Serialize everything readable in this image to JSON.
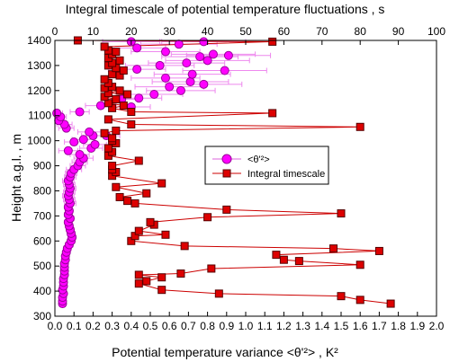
{
  "chart_data": {
    "type": "scatter",
    "top_axis_label": "Integral timescale of potential temperature fluctuations , s",
    "bottom_axis_label": "Potential temperature variance <θ'²> , K²",
    "y_axis_label": "Height a.g.l. , m",
    "bottom_axis": {
      "min": 0,
      "max": 2.0,
      "step": 0.1
    },
    "top_axis": {
      "min": 0,
      "max": 100,
      "step": 10
    },
    "y_axis": {
      "min": 300,
      "max": 1400,
      "step": 100
    },
    "legend_position": "center-right",
    "series": [
      {
        "name": "<θ'²>",
        "axis": "bottom",
        "marker": "circle",
        "color": "#ff00ff",
        "marker_edge": "#990099",
        "points": [
          {
            "x": 0.04,
            "y": 350,
            "err": 0
          },
          {
            "x": 0.04,
            "y": 360,
            "err": 0
          },
          {
            "x": 0.04,
            "y": 375,
            "err": 0
          },
          {
            "x": 0.045,
            "y": 390,
            "err": 0
          },
          {
            "x": 0.04,
            "y": 405,
            "err": 0
          },
          {
            "x": 0.045,
            "y": 420,
            "err": 0
          },
          {
            "x": 0.045,
            "y": 435,
            "err": 0
          },
          {
            "x": 0.045,
            "y": 450,
            "err": 0
          },
          {
            "x": 0.05,
            "y": 465,
            "err": 0
          },
          {
            "x": 0.05,
            "y": 480,
            "err": 0
          },
          {
            "x": 0.05,
            "y": 495,
            "err": 0
          },
          {
            "x": 0.05,
            "y": 510,
            "err": 0
          },
          {
            "x": 0.055,
            "y": 525,
            "err": 0
          },
          {
            "x": 0.055,
            "y": 540,
            "err": 0
          },
          {
            "x": 0.06,
            "y": 555,
            "err": 0
          },
          {
            "x": 0.065,
            "y": 570,
            "err": 0.02
          },
          {
            "x": 0.075,
            "y": 585,
            "err": 0.02
          },
          {
            "x": 0.085,
            "y": 600,
            "err": 0.02
          },
          {
            "x": 0.09,
            "y": 615,
            "err": 0.02
          },
          {
            "x": 0.085,
            "y": 630,
            "err": 0.02
          },
          {
            "x": 0.08,
            "y": 645,
            "err": 0.02
          },
          {
            "x": 0.075,
            "y": 660,
            "err": 0.02
          },
          {
            "x": 0.07,
            "y": 675,
            "err": 0.02
          },
          {
            "x": 0.08,
            "y": 690,
            "err": 0.02
          },
          {
            "x": 0.07,
            "y": 705,
            "err": 0.02
          },
          {
            "x": 0.075,
            "y": 720,
            "err": 0.02
          },
          {
            "x": 0.07,
            "y": 735,
            "err": 0.02
          },
          {
            "x": 0.08,
            "y": 750,
            "err": 0.03
          },
          {
            "x": 0.075,
            "y": 765,
            "err": 0.03
          },
          {
            "x": 0.07,
            "y": 780,
            "err": 0.03
          },
          {
            "x": 0.075,
            "y": 795,
            "err": 0.03
          },
          {
            "x": 0.08,
            "y": 810,
            "err": 0.03
          },
          {
            "x": 0.075,
            "y": 825,
            "err": 0.03
          },
          {
            "x": 0.07,
            "y": 840,
            "err": 0.03
          },
          {
            "x": 0.08,
            "y": 855,
            "err": 0.03
          },
          {
            "x": 0.085,
            "y": 870,
            "err": 0.03
          },
          {
            "x": 0.1,
            "y": 885,
            "err": 0.04
          },
          {
            "x": 0.12,
            "y": 900,
            "err": 0.04
          },
          {
            "x": 0.13,
            "y": 915,
            "err": 0.04
          },
          {
            "x": 0.15,
            "y": 930,
            "err": 0.05
          },
          {
            "x": 0.13,
            "y": 945,
            "err": 0.05
          },
          {
            "x": 0.07,
            "y": 960,
            "err": 0.05
          },
          {
            "x": 0.19,
            "y": 970,
            "err": 0.06
          },
          {
            "x": 0.21,
            "y": 985,
            "err": 0.06
          },
          {
            "x": 0.1,
            "y": 995,
            "err": 0.05
          },
          {
            "x": 0.15,
            "y": 1005,
            "err": 0.06
          },
          {
            "x": 0.2,
            "y": 1020,
            "err": 0.06
          },
          {
            "x": 0.27,
            "y": 1020,
            "err": 0.07
          },
          {
            "x": 0.18,
            "y": 1035,
            "err": 0.06
          },
          {
            "x": 0.06,
            "y": 1050,
            "err": 0.04
          },
          {
            "x": 0.05,
            "y": 1065,
            "err": 0.04
          },
          {
            "x": 0.02,
            "y": 1080,
            "err": 0.03
          },
          {
            "x": 0.03,
            "y": 1095,
            "err": 0.03
          },
          {
            "x": 0.01,
            "y": 1110,
            "err": 0.03
          },
          {
            "x": 0.13,
            "y": 1115,
            "err": 0.05
          },
          {
            "x": 0.24,
            "y": 1140,
            "err": 0.08
          },
          {
            "x": 0.4,
            "y": 1135,
            "err": 0.1
          },
          {
            "x": 0.35,
            "y": 1165,
            "err": 0.1
          },
          {
            "x": 0.44,
            "y": 1170,
            "err": 0.12
          },
          {
            "x": 0.52,
            "y": 1185,
            "err": 0.15
          },
          {
            "x": 0.66,
            "y": 1200,
            "err": 0.18
          },
          {
            "x": 0.6,
            "y": 1215,
            "err": 0.18
          },
          {
            "x": 0.78,
            "y": 1225,
            "err": 0.2
          },
          {
            "x": 0.71,
            "y": 1235,
            "err": 0.2
          },
          {
            "x": 0.58,
            "y": 1250,
            "err": 0.18
          },
          {
            "x": 0.72,
            "y": 1265,
            "err": 0.2
          },
          {
            "x": 0.89,
            "y": 1280,
            "err": 0.22
          },
          {
            "x": 0.43,
            "y": 1285,
            "err": 0.15
          },
          {
            "x": 0.55,
            "y": 1300,
            "err": 0.18
          },
          {
            "x": 0.69,
            "y": 1310,
            "err": 0.2
          },
          {
            "x": 0.8,
            "y": 1320,
            "err": 0.22
          },
          {
            "x": 0.76,
            "y": 1335,
            "err": 0.2
          },
          {
            "x": 0.91,
            "y": 1340,
            "err": 0.22
          },
          {
            "x": 0.83,
            "y": 1345,
            "err": 0.22
          },
          {
            "x": 0.58,
            "y": 1355,
            "err": 0.18
          },
          {
            "x": 0.43,
            "y": 1370,
            "err": 0.15
          },
          {
            "x": 0.65,
            "y": 1385,
            "err": 0.2
          },
          {
            "x": 0.4,
            "y": 1395,
            "err": 0.15
          },
          {
            "x": 0.78,
            "y": 1395,
            "err": 0.22
          }
        ]
      },
      {
        "name": "Integral timescale",
        "axis": "top",
        "marker": "square",
        "color": "#dd0000",
        "marker_edge": "#550000",
        "points": [
          {
            "x": 88,
            "y": 350
          },
          {
            "x": 80,
            "y": 365
          },
          {
            "x": 75,
            "y": 380
          },
          {
            "x": 43,
            "y": 390
          },
          {
            "x": 28,
            "y": 405
          },
          {
            "x": 22,
            "y": 430
          },
          {
            "x": 24,
            "y": 440
          },
          {
            "x": 28,
            "y": 455
          },
          {
            "x": 22,
            "y": 465
          },
          {
            "x": 33,
            "y": 470
          },
          {
            "x": 41,
            "y": 490
          },
          {
            "x": 80,
            "y": 505
          },
          {
            "x": 64,
            "y": 520
          },
          {
            "x": 60,
            "y": 525
          },
          {
            "x": 58,
            "y": 545
          },
          {
            "x": 85,
            "y": 560
          },
          {
            "x": 73,
            "y": 570
          },
          {
            "x": 34,
            "y": 580
          },
          {
            "x": 20,
            "y": 600
          },
          {
            "x": 21,
            "y": 620
          },
          {
            "x": 29,
            "y": 625
          },
          {
            "x": 22,
            "y": 640
          },
          {
            "x": 26,
            "y": 665
          },
          {
            "x": 25,
            "y": 675
          },
          {
            "x": 40,
            "y": 695
          },
          {
            "x": 75,
            "y": 710
          },
          {
            "x": 45,
            "y": 725
          },
          {
            "x": 21,
            "y": 750
          },
          {
            "x": 19,
            "y": 760
          },
          {
            "x": 17,
            "y": 775
          },
          {
            "x": 24,
            "y": 790
          },
          {
            "x": 16,
            "y": 815
          },
          {
            "x": 28,
            "y": 830
          },
          {
            "x": 15,
            "y": 860
          },
          {
            "x": 16,
            "y": 875
          },
          {
            "x": 15,
            "y": 885
          },
          {
            "x": 15,
            "y": 900
          },
          {
            "x": 22,
            "y": 920
          },
          {
            "x": 14,
            "y": 940
          },
          {
            "x": 15,
            "y": 955
          },
          {
            "x": 14,
            "y": 970
          },
          {
            "x": 16,
            "y": 990
          },
          {
            "x": 15,
            "y": 1000
          },
          {
            "x": 15,
            "y": 1010
          },
          {
            "x": 13,
            "y": 1030
          },
          {
            "x": 16,
            "y": 1040
          },
          {
            "x": 80,
            "y": 1055
          },
          {
            "x": 20,
            "y": 1065
          },
          {
            "x": 14,
            "y": 1085
          },
          {
            "x": 57,
            "y": 1110
          },
          {
            "x": 20,
            "y": 1115
          },
          {
            "x": 15,
            "y": 1130
          },
          {
            "x": 18,
            "y": 1140
          },
          {
            "x": 14,
            "y": 1150
          },
          {
            "x": 16,
            "y": 1165
          },
          {
            "x": 13,
            "y": 1175
          },
          {
            "x": 19,
            "y": 1185
          },
          {
            "x": 14,
            "y": 1190
          },
          {
            "x": 17,
            "y": 1200
          },
          {
            "x": 13,
            "y": 1210
          },
          {
            "x": 15,
            "y": 1215
          },
          {
            "x": 14,
            "y": 1230
          },
          {
            "x": 13,
            "y": 1245
          },
          {
            "x": 17,
            "y": 1260
          },
          {
            "x": 15,
            "y": 1265
          },
          {
            "x": 18,
            "y": 1280
          },
          {
            "x": 16,
            "y": 1290
          },
          {
            "x": 14,
            "y": 1300
          },
          {
            "x": 15,
            "y": 1310
          },
          {
            "x": 17,
            "y": 1320
          },
          {
            "x": 14,
            "y": 1330
          },
          {
            "x": 15,
            "y": 1345
          },
          {
            "x": 16,
            "y": 1355
          },
          {
            "x": 14,
            "y": 1360
          },
          {
            "x": 13,
            "y": 1375
          },
          {
            "x": 57,
            "y": 1395
          },
          {
            "x": 6,
            "y": 1400
          }
        ]
      }
    ]
  }
}
